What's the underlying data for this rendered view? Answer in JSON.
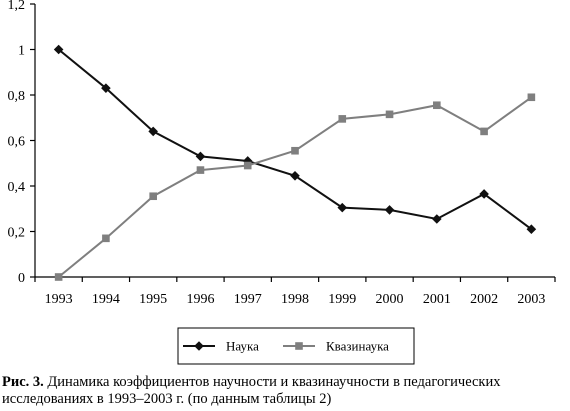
{
  "chart_data": {
    "type": "line",
    "x": [
      "1993",
      "1994",
      "1995",
      "1996",
      "1997",
      "1998",
      "1999",
      "2000",
      "2001",
      "2002",
      "2003"
    ],
    "ylim": [
      0,
      1.2
    ],
    "yticks": [
      "0",
      "0,2",
      "0,4",
      "0,6",
      "0,8",
      "1",
      "1,2"
    ],
    "grid": false,
    "legend_position": "bottom-center",
    "series": [
      {
        "name": "Наука",
        "marker": "diamond",
        "color": "#111111",
        "values": [
          1.0,
          0.83,
          0.64,
          0.53,
          0.51,
          0.445,
          0.305,
          0.295,
          0.255,
          0.365,
          0.21
        ]
      },
      {
        "name": "Квазинаука",
        "marker": "square",
        "color": "#7f7f7f",
        "values": [
          0.0,
          0.17,
          0.355,
          0.47,
          0.49,
          0.555,
          0.695,
          0.715,
          0.755,
          0.64,
          0.79
        ]
      }
    ]
  },
  "caption": {
    "label": "Рис. 3.",
    "text": " Динамика коэффициентов научности и квазинаучности в педагогических исследованиях в 1993–2003 г. (по данным таблицы 2)"
  }
}
